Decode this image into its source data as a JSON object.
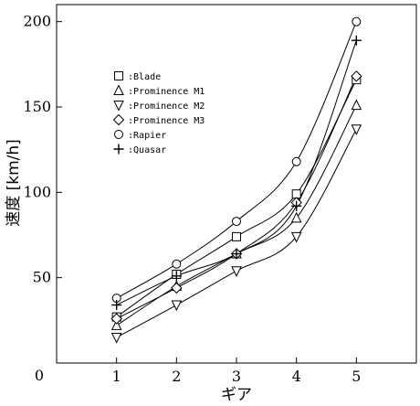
{
  "chart_data": {
    "type": "line",
    "title": "",
    "xlabel": "ギア",
    "ylabel": "速度 [km/h]",
    "xlim": [
      0,
      6
    ],
    "ylim": [
      0,
      210
    ],
    "x_ticks": [
      1,
      2,
      3,
      4,
      5
    ],
    "y_ticks": [
      0,
      50,
      100,
      150,
      200
    ],
    "x_tick_labels": [
      "1",
      "2",
      "3",
      "4",
      "5"
    ],
    "y_tick_labels": [
      "0",
      "50",
      "100",
      "150",
      "200"
    ],
    "grid": false,
    "legend_position": "top-left",
    "legend_separator": ":",
    "series": [
      {
        "name": "Blade",
        "marker": "square",
        "x": [
          1,
          2,
          3,
          4,
          5
        ],
        "y": [
          27,
          52,
          74,
          99,
          166
        ]
      },
      {
        "name": "Prominence M1",
        "marker": "triangle-up",
        "x": [
          1,
          2,
          3,
          4,
          5
        ],
        "y": [
          22,
          45,
          64,
          85,
          151
        ]
      },
      {
        "name": "Prominence M2",
        "marker": "triangle-down",
        "x": [
          1,
          2,
          3,
          4,
          5
        ],
        "y": [
          15,
          34,
          54,
          74,
          137
        ]
      },
      {
        "name": "Prominence M3",
        "marker": "diamond",
        "x": [
          1,
          2,
          3,
          4,
          5
        ],
        "y": [
          26,
          44,
          64,
          94,
          168
        ]
      },
      {
        "name": "Rapier",
        "marker": "circle",
        "x": [
          1,
          2,
          3,
          4,
          5
        ],
        "y": [
          38,
          58,
          83,
          118,
          200
        ]
      },
      {
        "name": "Quasar",
        "marker": "plus",
        "x": [
          1,
          2,
          3,
          4,
          5
        ],
        "y": [
          34,
          51,
          64,
          92,
          189
        ]
      }
    ]
  }
}
